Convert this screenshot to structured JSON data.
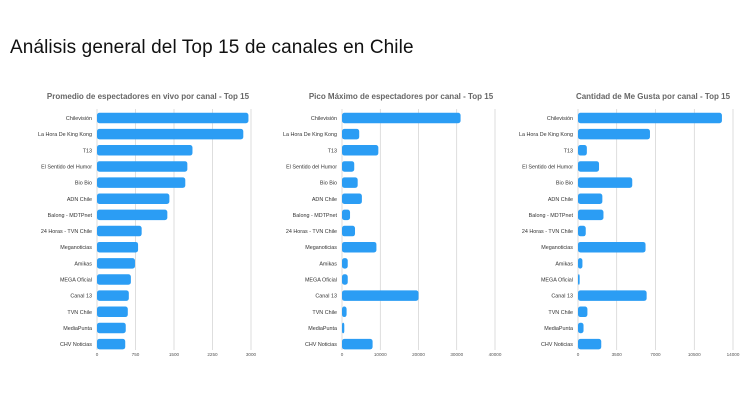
{
  "page": {
    "title": "Análisis general del Top 15 de canales en Chile"
  },
  "colors": {
    "bar": "#2b9df4"
  },
  "chart_data": [
    {
      "type": "bar",
      "orientation": "horizontal",
      "title": "Promedio de espectadores en vivo por canal - Top 15",
      "categories": [
        "Chilevisión",
        "La Hora De King Kong",
        "T13",
        "El Sentido del Humor",
        "Bio Bio",
        "ADN Chile",
        "Balong - MDTPnet",
        "24 Horas - TVN Chile",
        "Meganoticias",
        "Amikas",
        "MEGA Oficial",
        "Canal 13",
        "TVN Chile",
        "MediaPunta",
        "CHV Noticias"
      ],
      "values": [
        2950,
        2850,
        1860,
        1760,
        1720,
        1410,
        1370,
        870,
        800,
        740,
        660,
        620,
        600,
        560,
        550
      ],
      "xlim": [
        0,
        3000
      ],
      "xticks": [
        "0",
        "750",
        "1500",
        "2250",
        "3000"
      ],
      "grid": true
    },
    {
      "type": "bar",
      "orientation": "horizontal",
      "title": "Pico Máximo de espectadores por canal - Top 15",
      "categories": [
        "Chilevisión",
        "La Hora De King Kong",
        "T13",
        "El Sentido del Humor",
        "Bio Bio",
        "ADN Chile",
        "Balong - MDTPnet",
        "24 Horas - TVN Chile",
        "Meganoticias",
        "Amikas",
        "MEGA Oficial",
        "Canal 13",
        "TVN Chile",
        "MediaPunta",
        "CHV Noticias"
      ],
      "values": [
        31000,
        4500,
        9500,
        3200,
        4100,
        5200,
        2100,
        3400,
        9000,
        1500,
        1500,
        20000,
        1200,
        600,
        8000
      ],
      "xlim": [
        0,
        40000
      ],
      "xticks": [
        "0",
        "10000",
        "20000",
        "30000",
        "40000"
      ],
      "grid": true
    },
    {
      "type": "bar",
      "orientation": "horizontal",
      "title": "Cantidad de Me Gusta por canal - Top 15",
      "categories": [
        "Chilevisión",
        "La Hora De King Kong",
        "T13",
        "El Sentido del Humor",
        "Bio Bio",
        "ADN Chile",
        "Balong - MDTPnet",
        "24 Horas - TVN Chile",
        "Meganoticias",
        "Amikas",
        "MEGA Oficial",
        "Canal 13",
        "TVN Chile",
        "MediaPunta",
        "CHV Noticias"
      ],
      "values": [
        13000,
        6500,
        800,
        1900,
        4900,
        2200,
        2300,
        700,
        6100,
        400,
        150,
        6200,
        850,
        500,
        2100
      ],
      "xlim": [
        0,
        14000
      ],
      "xticks": [
        "0",
        "3500",
        "7000",
        "10500",
        "14000"
      ],
      "grid": true
    }
  ]
}
